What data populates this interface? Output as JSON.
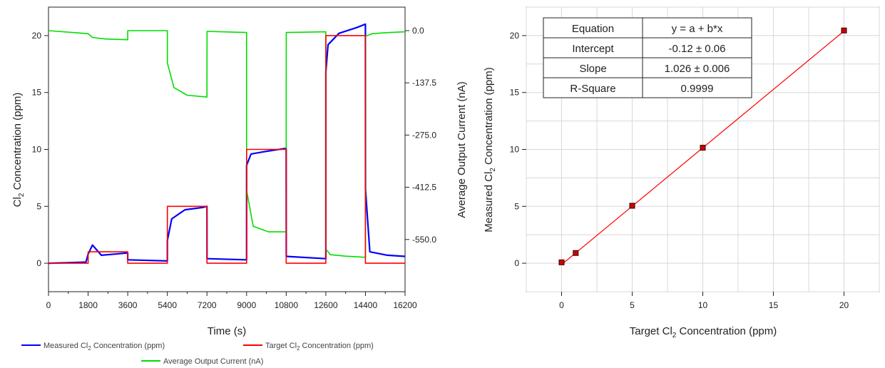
{
  "chart_data": [
    {
      "type": "line",
      "xlabel": "Time (s)",
      "ylabel_left": "Cl2 Concentration (ppm)",
      "ylabel_right": "Average Output Current (nA)",
      "xlim": [
        0,
        16200
      ],
      "ylim_left": [
        -2.5,
        22.5
      ],
      "ylim_right": [
        -687.5,
        61.9
      ],
      "x_ticks": [
        "0",
        "1800",
        "3600",
        "5400",
        "7200",
        "9000",
        "10800",
        "12600",
        "14400",
        "16200"
      ],
      "y_ticks_left": [
        "0",
        "5",
        "10",
        "15",
        "20"
      ],
      "y_ticks_right": [
        "0.0",
        "-137.5",
        "-275.0",
        "-412.5",
        "-550.0"
      ],
      "legend_position": "bottom",
      "series": [
        {
          "name": "Measured Cl2 Concentration (ppm)",
          "axis": "left",
          "color": "#0000ff",
          "x": [
            0,
            900,
            1700,
            1800,
            2000,
            2400,
            3000,
            3600,
            3601,
            5400,
            5401,
            5600,
            6200,
            7000,
            7200,
            7201,
            9000,
            9001,
            9200,
            9800,
            10800,
            10801,
            12600,
            12601,
            12700,
            13200,
            14000,
            14400,
            14401,
            14600,
            15400,
            16200
          ],
          "y": [
            0,
            0.05,
            0.1,
            0.8,
            1.6,
            0.7,
            0.8,
            0.9,
            0.3,
            0.2,
            2.0,
            3.9,
            4.7,
            4.9,
            5.0,
            0.4,
            0.3,
            8.6,
            9.6,
            9.8,
            10.1,
            0.6,
            0.4,
            16.8,
            19.2,
            20.2,
            20.7,
            21.0,
            6.5,
            1.0,
            0.7,
            0.6
          ]
        },
        {
          "name": "Target Cl2 Concentration (ppm)",
          "axis": "left",
          "color": "#ff0000",
          "x": [
            0,
            1800,
            1800,
            3600,
            3600,
            5400,
            5400,
            7200,
            7200,
            9000,
            9000,
            10800,
            10800,
            12600,
            12600,
            14400,
            14400,
            16200
          ],
          "y": [
            0,
            0,
            1,
            1,
            0,
            0,
            5,
            5,
            0,
            0,
            10,
            10,
            0,
            0,
            20,
            20,
            0,
            0
          ]
        },
        {
          "name": "Average Output Current (nA)",
          "axis": "right",
          "color": "#00dd00",
          "x": [
            0,
            1800,
            2000,
            2600,
            3600,
            3601,
            5400,
            5401,
            5700,
            6300,
            7200,
            7201,
            9000,
            9001,
            9300,
            10000,
            10800,
            10801,
            12600,
            12601,
            12800,
            13500,
            14400,
            14401,
            14700,
            15500,
            16200
          ],
          "y": [
            0,
            -8,
            -18,
            -22,
            -24,
            0,
            0,
            -85,
            -150,
            -170,
            -175,
            -2,
            -5,
            -420,
            -515,
            -530,
            -530,
            -5,
            -3,
            -575,
            -590,
            -594,
            -597,
            -15,
            -8,
            -5,
            -3
          ]
        }
      ]
    },
    {
      "type": "scatter",
      "xlabel": "Target Cl2 Concentration (ppm)",
      "ylabel": "Measured Cl2 Concentration (ppm)",
      "xlim": [
        -2.5,
        22.5
      ],
      "ylim": [
        -2.5,
        22.5
      ],
      "x_ticks": [
        "0",
        "5",
        "10",
        "15",
        "20"
      ],
      "y_ticks": [
        "0",
        "5",
        "10",
        "15",
        "20"
      ],
      "grid": true,
      "points": {
        "x": [
          0,
          1,
          5,
          10,
          20
        ],
        "y": [
          0.08,
          0.9,
          5.05,
          10.15,
          20.45
        ],
        "color": "#cc0000"
      },
      "fit": {
        "color": "#ff0000",
        "intercept": -0.12,
        "slope": 1.026,
        "x_range": [
          0,
          20
        ]
      },
      "table": {
        "rows": [
          [
            "Equation",
            "y = a + b*x"
          ],
          [
            "Intercept",
            "-0.12 ± 0.06"
          ],
          [
            "Slope",
            "1.026 ± 0.006"
          ],
          [
            "R-Square",
            "0.9999"
          ]
        ]
      }
    }
  ]
}
